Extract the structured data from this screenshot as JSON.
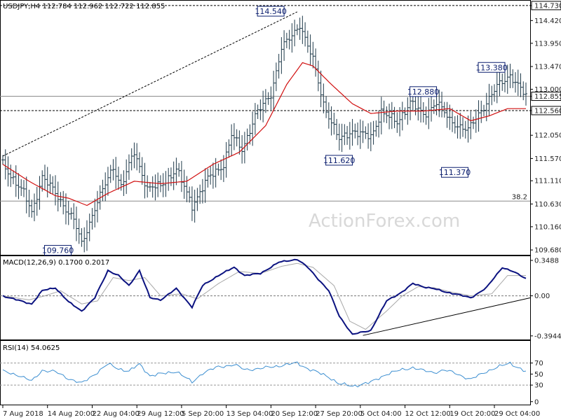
{
  "main": {
    "header": "USDJPY,H4  112.784 112.962 112.722 112.855",
    "watermark": "ActionForex.com",
    "ylim": [
      109.58,
      114.83
    ],
    "yticks": [
      "114.730",
      "114.420",
      "113.950",
      "113.470",
      "113.000",
      "112.855",
      "112.560",
      "112.050",
      "111.570",
      "111.110",
      "110.630",
      "110.160",
      "109.680"
    ],
    "levels": [
      {
        "value": 114.73,
        "label": "114.730",
        "style": "dashed",
        "boxed": true
      },
      {
        "value": 112.855,
        "label": "112.855",
        "style": "solid-gray",
        "boxed": true
      },
      {
        "value": 112.56,
        "label": "112.560",
        "style": "dashed",
        "boxed": true
      },
      {
        "value": 110.69,
        "label": "38.2",
        "style": "solid-gray",
        "boxed": false
      }
    ],
    "price_labels": [
      {
        "label": "114.540",
        "x": 107,
        "y": 114.54
      },
      {
        "label": "113.380",
        "x": 191,
        "y": 113.38
      },
      {
        "label": "112.880",
        "x": 165,
        "y": 112.88
      },
      {
        "label": "111.620",
        "x": 133,
        "y": 111.62
      },
      {
        "label": "111.370",
        "x": 177,
        "y": 111.37
      },
      {
        "label": "109.760",
        "x": 26,
        "y": 109.76
      }
    ],
    "candles": {
      "count": 200,
      "anchors": [
        [
          0,
          111.45
        ],
        [
          8,
          110.85
        ],
        [
          11,
          110.45
        ],
        [
          15,
          111.2
        ],
        [
          20,
          110.85
        ],
        [
          27,
          110.3
        ],
        [
          30,
          109.8
        ],
        [
          35,
          110.55
        ],
        [
          42,
          111.4
        ],
        [
          45,
          111.0
        ],
        [
          50,
          111.7
        ],
        [
          55,
          110.95
        ],
        [
          60,
          111.0
        ],
        [
          66,
          111.35
        ],
        [
          72,
          110.6
        ],
        [
          78,
          111.15
        ],
        [
          84,
          111.45
        ],
        [
          87,
          112.05
        ],
        [
          91,
          111.75
        ],
        [
          96,
          112.45
        ],
        [
          102,
          112.9
        ],
        [
          106,
          113.85
        ],
        [
          110,
          114.1
        ],
        [
          113,
          114.35
        ],
        [
          118,
          113.6
        ],
        [
          122,
          112.7
        ],
        [
          128,
          111.95
        ],
        [
          133,
          112.15
        ],
        [
          140,
          112.0
        ],
        [
          144,
          112.55
        ],
        [
          150,
          112.3
        ],
        [
          155,
          112.75
        ],
        [
          160,
          112.45
        ],
        [
          165,
          112.75
        ],
        [
          170,
          112.35
        ],
        [
          177,
          112.15
        ],
        [
          183,
          112.65
        ],
        [
          188,
          113.05
        ],
        [
          193,
          113.3
        ],
        [
          199,
          112.85
        ]
      ],
      "color": "#1f3a4a"
    },
    "ma": {
      "anchors": [
        [
          0,
          111.45
        ],
        [
          10,
          111.1
        ],
        [
          20,
          110.8
        ],
        [
          25,
          110.75
        ],
        [
          32,
          110.6
        ],
        [
          40,
          110.85
        ],
        [
          50,
          111.1
        ],
        [
          60,
          111.05
        ],
        [
          70,
          111.1
        ],
        [
          80,
          111.45
        ],
        [
          90,
          111.7
        ],
        [
          100,
          112.25
        ],
        [
          108,
          113.1
        ],
        [
          114,
          113.55
        ],
        [
          118,
          113.48
        ],
        [
          125,
          113.1
        ],
        [
          133,
          112.7
        ],
        [
          140,
          112.5
        ],
        [
          150,
          112.55
        ],
        [
          160,
          112.55
        ],
        [
          170,
          112.6
        ],
        [
          178,
          112.35
        ],
        [
          185,
          112.45
        ],
        [
          192,
          112.6
        ],
        [
          199,
          112.6
        ]
      ],
      "color": "#d11010"
    },
    "trendline": {
      "from": [
        0,
        111.62
      ],
      "to": [
        112,
        114.6
      ]
    }
  },
  "macd": {
    "header": "MACD(12,26,9) 0.1700 0.2017",
    "ylim": [
      -0.43,
      0.39
    ],
    "yticks": [
      "0.3488",
      "0.00",
      "-0.3944"
    ],
    "zero_label": "0.00",
    "line_anchors": [
      [
        0,
        0.0
      ],
      [
        8,
        -0.06
      ],
      [
        11,
        -0.08
      ],
      [
        15,
        0.05
      ],
      [
        20,
        0.08
      ],
      [
        25,
        -0.06
      ],
      [
        30,
        -0.15
      ],
      [
        35,
        -0.02
      ],
      [
        40,
        0.25
      ],
      [
        44,
        0.2
      ],
      [
        48,
        0.1
      ],
      [
        52,
        0.25
      ],
      [
        56,
        -0.02
      ],
      [
        60,
        -0.04
      ],
      [
        66,
        0.07
      ],
      [
        72,
        -0.11
      ],
      [
        76,
        0.1
      ],
      [
        82,
        0.2
      ],
      [
        88,
        0.28
      ],
      [
        92,
        0.2
      ],
      [
        98,
        0.22
      ],
      [
        105,
        0.33
      ],
      [
        112,
        0.36
      ],
      [
        116,
        0.28
      ],
      [
        124,
        0.05
      ],
      [
        128,
        -0.2
      ],
      [
        133,
        -0.38
      ],
      [
        140,
        -0.34
      ],
      [
        146,
        -0.05
      ],
      [
        152,
        0.04
      ],
      [
        156,
        0.12
      ],
      [
        160,
        0.09
      ],
      [
        164,
        0.07
      ],
      [
        168,
        0.04
      ],
      [
        172,
        0.02
      ],
      [
        178,
        -0.02
      ],
      [
        184,
        0.08
      ],
      [
        190,
        0.28
      ],
      [
        194,
        0.24
      ],
      [
        199,
        0.17
      ]
    ],
    "signal_anchors": [
      [
        0,
        0.0
      ],
      [
        10,
        -0.04
      ],
      [
        16,
        0.0
      ],
      [
        22,
        0.05
      ],
      [
        30,
        -0.08
      ],
      [
        36,
        -0.05
      ],
      [
        42,
        0.18
      ],
      [
        48,
        0.15
      ],
      [
        54,
        0.18
      ],
      [
        60,
        0.0
      ],
      [
        68,
        0.02
      ],
      [
        74,
        -0.03
      ],
      [
        82,
        0.12
      ],
      [
        90,
        0.24
      ],
      [
        98,
        0.22
      ],
      [
        106,
        0.29
      ],
      [
        112,
        0.32
      ],
      [
        118,
        0.28
      ],
      [
        126,
        0.1
      ],
      [
        132,
        -0.25
      ],
      [
        138,
        -0.33
      ],
      [
        146,
        -0.15
      ],
      [
        152,
        0.0
      ],
      [
        158,
        0.09
      ],
      [
        164,
        0.08
      ],
      [
        170,
        0.04
      ],
      [
        178,
        0.0
      ],
      [
        186,
        0.02
      ],
      [
        192,
        0.2
      ],
      [
        199,
        0.2
      ]
    ],
    "line_color": "#0b1280",
    "signal_color": "#a8a8a8",
    "trendline": {
      "from": [
        137,
        -0.39
      ],
      "to": [
        199,
        -0.02
      ]
    }
  },
  "rsi": {
    "header": "RSI(14) 54.0625",
    "ylim": [
      0,
      100
    ],
    "yticks": [
      "70",
      "50",
      "30",
      "0"
    ],
    "levels": [
      70,
      30
    ],
    "anchors": [
      [
        0,
        55
      ],
      [
        6,
        48
      ],
      [
        11,
        37
      ],
      [
        15,
        57
      ],
      [
        20,
        54
      ],
      [
        25,
        42
      ],
      [
        30,
        33
      ],
      [
        35,
        50
      ],
      [
        40,
        68
      ],
      [
        44,
        60
      ],
      [
        48,
        55
      ],
      [
        52,
        68
      ],
      [
        56,
        47
      ],
      [
        60,
        50
      ],
      [
        66,
        55
      ],
      [
        72,
        35
      ],
      [
        76,
        52
      ],
      [
        82,
        63
      ],
      [
        88,
        67
      ],
      [
        92,
        58
      ],
      [
        98,
        60
      ],
      [
        105,
        65
      ],
      [
        112,
        70
      ],
      [
        116,
        60
      ],
      [
        124,
        45
      ],
      [
        128,
        32
      ],
      [
        133,
        28
      ],
      [
        140,
        35
      ],
      [
        146,
        50
      ],
      [
        152,
        58
      ],
      [
        156,
        62
      ],
      [
        160,
        56
      ],
      [
        164,
        53
      ],
      [
        168,
        57
      ],
      [
        172,
        52
      ],
      [
        178,
        40
      ],
      [
        184,
        55
      ],
      [
        188,
        62
      ],
      [
        193,
        70
      ],
      [
        199,
        54
      ]
    ],
    "color": "#3d8fd1"
  },
  "xaxis": {
    "labels": [
      {
        "label": "7 Aug 2018",
        "i": 0
      },
      {
        "label": "14 Aug 20:00",
        "i": 17
      },
      {
        "label": "22 Aug 04:00",
        "i": 34
      },
      {
        "label": "29 Aug 12:00",
        "i": 51
      },
      {
        "label": "5 Sep 20:00",
        "i": 68
      },
      {
        "label": "13 Sep 04:00",
        "i": 85
      },
      {
        "label": "20 Sep 12:00",
        "i": 102
      },
      {
        "label": "27 Sep 20:00",
        "i": 119
      },
      {
        "label": "5 Oct 04:00",
        "i": 136
      },
      {
        "label": "12 Oct 12:00",
        "i": 153
      },
      {
        "label": "19 Oct 20:00",
        "i": 170
      },
      {
        "label": "29 Oct 04:00",
        "i": 187
      }
    ]
  }
}
